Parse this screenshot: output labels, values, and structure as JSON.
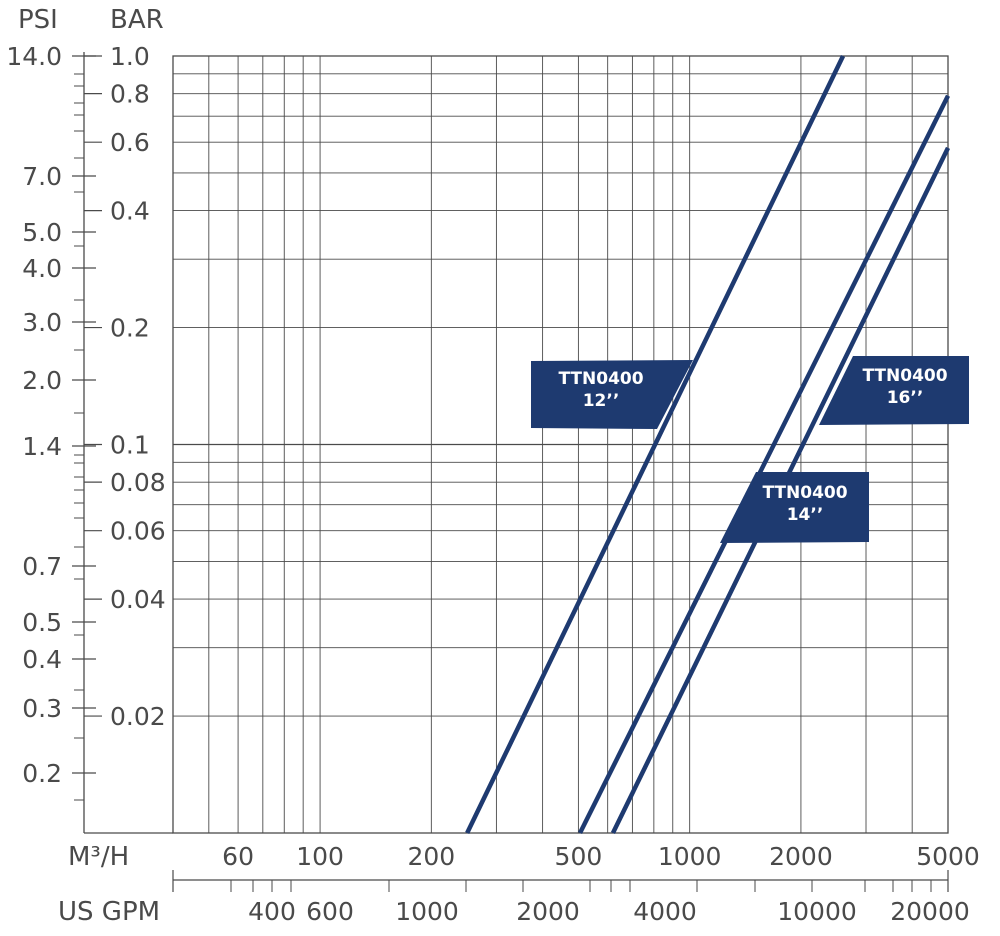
{
  "chart_data": {
    "type": "line",
    "scale": "log-log",
    "grid": true,
    "x_axes": {
      "primary": {
        "label": "M³/H",
        "range": [
          40,
          5000
        ],
        "ticks": [
          60,
          100,
          200,
          500,
          1000,
          2000,
          5000
        ],
        "tick_labels": [
          "60",
          "100",
          "200",
          "500",
          "1000",
          "2000",
          "5000"
        ]
      },
      "secondary": {
        "label": "US GPM",
        "tick_labels": [
          "400",
          "600",
          "1000",
          "2000",
          "4000",
          "10000",
          "20000"
        ]
      }
    },
    "y_axes": {
      "primary": {
        "label": "BAR",
        "range": [
          0.01,
          1.0
        ],
        "ticks": [
          1.0,
          0.8,
          0.6,
          0.4,
          0.2,
          0.1,
          0.08,
          0.06,
          0.04,
          0.02
        ],
        "tick_labels": [
          "1.0",
          "0.8",
          "0.6",
          "0.4",
          "0.2",
          "0.1",
          "0.08",
          "0.06",
          "0.04",
          "0.02"
        ]
      },
      "secondary": {
        "label": "PSI",
        "tick_labels": [
          "14.0",
          "7.0",
          "5.0",
          "4.0",
          "3.0",
          "2.0",
          "1.4",
          "0.7",
          "0.5",
          "0.4",
          "0.3",
          "0.2"
        ]
      }
    },
    "series": [
      {
        "name": "TTN0400 12’’",
        "line1": "TTN0400",
        "line2": "12’’",
        "x": [
          250,
          2600
        ],
        "y": [
          0.01,
          1.0
        ]
      },
      {
        "name": "TTN0400 14’’",
        "line1": "TTN0400",
        "line2": "14’’",
        "x": [
          620,
          5000
        ],
        "y": [
          0.01,
          0.58
        ]
      },
      {
        "name": "TTN0400 16’’",
        "line1": "TTN0400",
        "line2": "16’’",
        "x": [
          505,
          5000
        ],
        "y": [
          0.01,
          0.79
        ]
      }
    ],
    "line_color": "#1e3a70",
    "label_color": "#1e3a70",
    "grid_color": "#4a4a4a"
  }
}
